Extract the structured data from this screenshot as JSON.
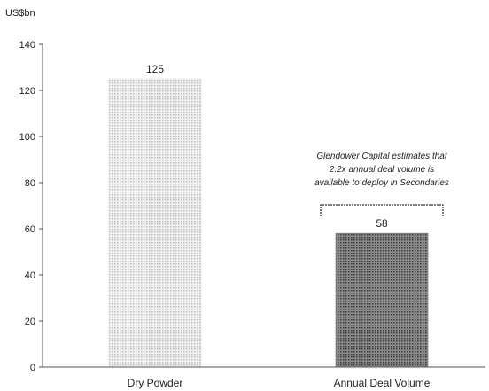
{
  "chart_data": {
    "type": "bar",
    "ylabel": "US$bn",
    "ylim": [
      0,
      140
    ],
    "yticks": [
      0,
      20,
      40,
      60,
      80,
      100,
      120,
      140
    ],
    "categories": [
      "Dry Powder",
      "Annual Deal Volume"
    ],
    "values": [
      125,
      58
    ],
    "data_labels": [
      "125",
      "58"
    ],
    "bar_colors": [
      "#dcdcdc",
      "#6e6e6e"
    ],
    "annotation": {
      "lines": [
        "Glendower Capital estimates that",
        "2.2x annual deal volume is",
        "available to deploy in Secondaries"
      ]
    },
    "grid": false
  }
}
